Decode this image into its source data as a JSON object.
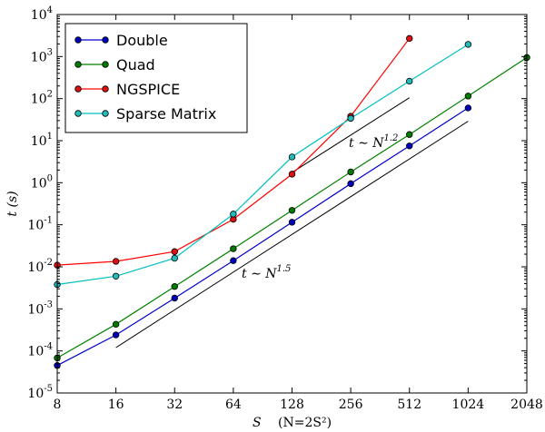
{
  "chart_data": {
    "type": "line",
    "xscale": "log2",
    "yscale": "log10",
    "xlabel": "S",
    "xlabel_suffix": "(N=2S²)",
    "ylabel": "t (s)",
    "x_ticks": [
      8,
      16,
      32,
      64,
      128,
      256,
      512,
      1024,
      2048
    ],
    "x_tick_labels": [
      "8",
      "16",
      "32",
      "64",
      "128",
      "256",
      "512",
      "1024",
      "2048"
    ],
    "xlim": [
      8,
      2048
    ],
    "y_ticks": [
      1e-05,
      0.0001,
      0.001,
      0.01,
      0.1,
      1,
      10,
      100,
      1000,
      10000
    ],
    "y_tick_labels": [
      {
        "base": "10",
        "exp": "-5"
      },
      {
        "base": "10",
        "exp": "-4"
      },
      {
        "base": "10",
        "exp": "-3"
      },
      {
        "base": "10",
        "exp": "-2"
      },
      {
        "base": "10",
        "exp": "-1"
      },
      {
        "base": "10",
        "exp": "0"
      },
      {
        "base": "10",
        "exp": "1"
      },
      {
        "base": "10",
        "exp": "2"
      },
      {
        "base": "10",
        "exp": "3"
      },
      {
        "base": "10",
        "exp": "4"
      }
    ],
    "ylim": [
      1e-05,
      10000.0
    ],
    "grid": false,
    "legend_position": "top-left",
    "series": [
      {
        "name": "Double",
        "color": "#0000cc",
        "marker_color": "#0000bb",
        "x": [
          8,
          16,
          32,
          64,
          128,
          256,
          512,
          1024
        ],
        "y": [
          4.5e-05,
          0.00024,
          0.0018,
          0.014,
          0.115,
          0.95,
          7.5,
          60
        ]
      },
      {
        "name": "Quad",
        "color": "#008000",
        "marker_color": "#007a00",
        "x": [
          8,
          16,
          32,
          64,
          128,
          256,
          512,
          1024,
          2048
        ],
        "y": [
          6.8e-05,
          0.00043,
          0.0034,
          0.027,
          0.22,
          1.8,
          14,
          115,
          950
        ]
      },
      {
        "name": "NGSPICE",
        "color": "#ff0000",
        "marker_color": "#dd1111",
        "x": [
          8,
          16,
          32,
          64,
          128,
          256,
          512
        ],
        "y": [
          0.011,
          0.0135,
          0.023,
          0.135,
          1.6,
          38,
          2700
        ]
      },
      {
        "name": "Sparse Matrix",
        "color": "#00bfbf",
        "marker_color": "#22bbbb",
        "x": [
          8,
          16,
          32,
          64,
          128,
          256,
          512,
          1024
        ],
        "y": [
          0.0038,
          0.006,
          0.016,
          0.18,
          4.1,
          34,
          260,
          1950
        ]
      }
    ],
    "reference_lines": [
      {
        "label_base": "t ∼ N",
        "label_exp": "1.5",
        "x": [
          16,
          1024
        ],
        "y": [
          0.00012,
          29
        ]
      },
      {
        "label_base": "t ∼ N",
        "label_exp": "1.2",
        "x": [
          128,
          512
        ],
        "y": [
          1.75,
          105
        ]
      }
    ]
  }
}
